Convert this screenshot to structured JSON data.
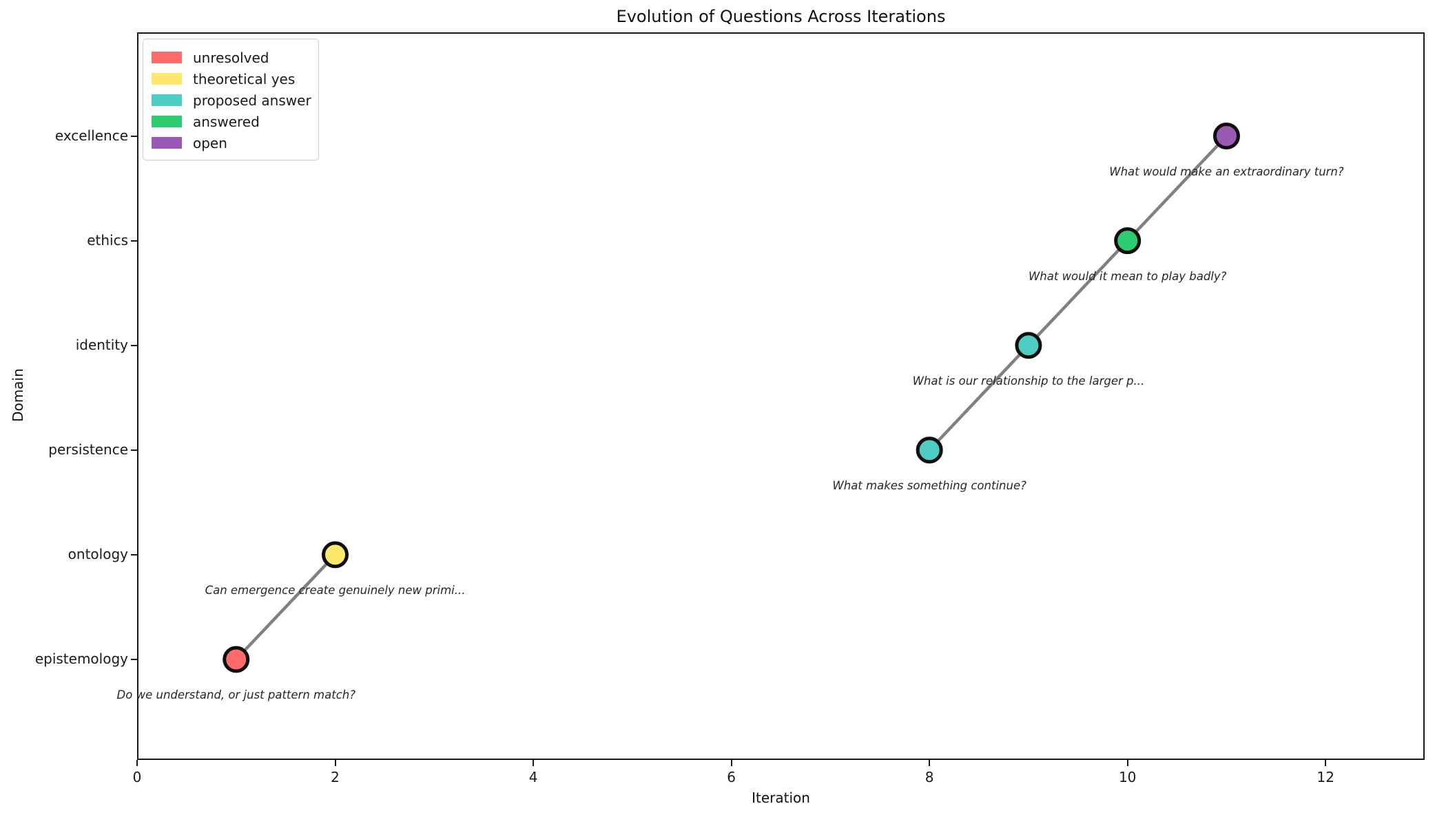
{
  "chart_data": {
    "type": "scatter",
    "title": "Evolution of Questions Across Iterations",
    "xlabel": "Iteration",
    "ylabel": "Domain",
    "categories": [
      "epistemology",
      "ontology",
      "persistence",
      "identity",
      "ethics",
      "excellence"
    ],
    "x_ticks": [
      "0",
      "2",
      "4",
      "6",
      "8",
      "10",
      "12"
    ],
    "x_tick_values": [
      0,
      2,
      4,
      6,
      8,
      10,
      12
    ],
    "xlim": [
      0,
      13
    ],
    "ylim": [
      -0.96,
      5.99
    ],
    "grid": false,
    "legend": {
      "position": "upper left",
      "items": [
        {
          "label": "unresolved",
          "color": "#FF6B6B"
        },
        {
          "label": "theoretical yes",
          "color": "#FFE66D"
        },
        {
          "label": "proposed answer",
          "color": "#4ECDC4"
        },
        {
          "label": "answered",
          "color": "#2ECC71"
        },
        {
          "label": "open",
          "color": "#9B59B6"
        }
      ]
    },
    "status_colors": {
      "unresolved": "#FF6B6B",
      "theoretical yes": "#FFE66D",
      "proposed answer": "#4ECDC4",
      "answered": "#2ECC71",
      "open": "#9B59B6"
    },
    "line_style": {
      "color": "#808080",
      "width": 4.5
    },
    "marker_style": {
      "edge_color": "#0d0d0d",
      "edge_width": 5,
      "radius": 17
    },
    "points": [
      {
        "x": 1,
        "domain": "epistemology",
        "status": "unresolved",
        "question": "Do we understand, or just pattern match?"
      },
      {
        "x": 2,
        "domain": "ontology",
        "status": "theoretical yes",
        "question": "Can emergence create genuinely new primi..."
      },
      {
        "x": 8,
        "domain": "persistence",
        "status": "proposed answer",
        "question": "What makes something continue?"
      },
      {
        "x": 9,
        "domain": "identity",
        "status": "proposed answer",
        "question": "What is our relationship to the larger p..."
      },
      {
        "x": 10,
        "domain": "ethics",
        "status": "answered",
        "question": "What would it mean to play badly?"
      },
      {
        "x": 11,
        "domain": "excellence",
        "status": "open",
        "question": "What would make an extraordinary turn?"
      }
    ],
    "connected_segments": [
      [
        0,
        1
      ],
      [
        2,
        3,
        4,
        5
      ]
    ]
  }
}
